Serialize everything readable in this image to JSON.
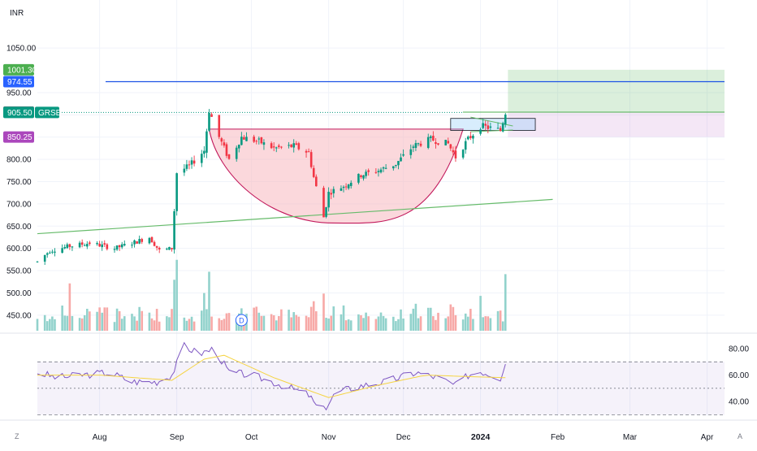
{
  "currency_label": "INR",
  "chart_data": {
    "type": "candlestick",
    "symbol": "GRSE",
    "x_axis": {
      "labels": [
        "Aug",
        "Sep",
        "Oct",
        "Nov",
        "Dec",
        "2024",
        "Feb",
        "Mar",
        "Apr"
      ],
      "dates": [
        "2023-08-01",
        "2023-09-01",
        "2023-10-01",
        "2023-11-01",
        "2023-12-01",
        "2024-01-01",
        "2024-02-01",
        "2024-03-01",
        "2024-04-01"
      ],
      "range": [
        "2023-07-07",
        "2024-04-08"
      ]
    },
    "price_axis": {
      "range": [
        415,
        1085
      ],
      "ticks": [
        450,
        500,
        550,
        600,
        650,
        700,
        750,
        800,
        850,
        900,
        950,
        1050
      ],
      "tick_labels": [
        "450.00",
        "500.00",
        "550.00",
        "600.00",
        "650.00",
        "700.00",
        "750.00",
        "800.00",
        "850.00",
        "900.00",
        "950.00",
        "1050.00"
      ]
    },
    "price_badges": [
      {
        "label": "1001.30",
        "value": 1001.3,
        "color": "#4caf50"
      },
      {
        "label": "974.55",
        "value": 974.55,
        "color": "#2962ff"
      },
      {
        "label": "906.30",
        "value": 906.3,
        "color": "#787b86"
      },
      {
        "label": "905.50",
        "value": 905.5,
        "color": "#089981"
      },
      {
        "label": "850.25",
        "value": 850.25,
        "color": "#ab47bc"
      }
    ],
    "colors": {
      "up": "#089981",
      "down": "#f23645",
      "volume_up": "#92d2cc",
      "volume_down": "#f7a9a7",
      "rsi": "#7e57c2",
      "rsi_ma": "#f5d442"
    },
    "candles_anchor": [
      [
        "2023-07-07",
        570
      ],
      [
        "2023-07-12",
        595
      ],
      [
        "2023-07-20",
        605
      ],
      [
        "2023-07-28",
        612
      ],
      [
        "2023-08-07",
        600
      ],
      [
        "2023-08-14",
        612
      ],
      [
        "2023-08-21",
        625
      ],
      [
        "2023-08-25",
        595
      ],
      [
        "2023-08-30",
        600
      ],
      [
        "2023-09-01",
        770
      ],
      [
        "2023-09-06",
        785
      ],
      [
        "2023-09-12",
        820
      ],
      [
        "2023-09-14",
        910
      ],
      [
        "2023-09-18",
        850
      ],
      [
        "2023-09-22",
        800
      ],
      [
        "2023-09-27",
        850
      ],
      [
        "2023-10-04",
        840
      ],
      [
        "2023-10-10",
        825
      ],
      [
        "2023-10-18",
        830
      ],
      [
        "2023-10-24",
        815
      ],
      [
        "2023-10-26",
        760
      ],
      [
        "2023-10-30",
        670
      ],
      [
        "2023-11-01",
        725
      ],
      [
        "2023-11-07",
        740
      ],
      [
        "2023-11-14",
        765
      ],
      [
        "2023-11-21",
        775
      ],
      [
        "2023-11-28",
        790
      ],
      [
        "2023-12-05",
        830
      ],
      [
        "2023-12-12",
        845
      ],
      [
        "2023-12-19",
        835
      ],
      [
        "2023-12-22",
        805
      ],
      [
        "2023-12-27",
        845
      ],
      [
        "2024-01-01",
        875
      ],
      [
        "2024-01-05",
        870
      ],
      [
        "2024-01-09",
        865
      ],
      [
        "2024-01-11",
        906
      ]
    ],
    "annotations": {
      "resistance_line": 974.55,
      "cup_rim_level": 868,
      "cup_bottom": {
        "date": "2023-11-03",
        "value": 657
      },
      "trendline": {
        "start": [
          "2023-07-07",
          633
        ],
        "end": [
          "2024-01-30",
          710
        ]
      },
      "target_zone": [
        906,
        1001.3
      ],
      "stop_zone": [
        850.25,
        906
      ],
      "consolidation_box": [
        865,
        892
      ],
      "dividend_marker": "D"
    },
    "rsi": {
      "axis_range": [
        29,
        88
      ],
      "ticks": [
        40,
        60,
        80
      ],
      "tick_labels": [
        "40.00",
        "60.00",
        "80.00"
      ],
      "levels": [
        30,
        50,
        70
      ],
      "anchor": [
        [
          "2023-07-07",
          62
        ],
        [
          "2023-07-15",
          58
        ],
        [
          "2023-07-25",
          60
        ],
        [
          "2023-08-05",
          62
        ],
        [
          "2023-08-14",
          55
        ],
        [
          "2023-08-24",
          55
        ],
        [
          "2023-08-30",
          60
        ],
        [
          "2023-09-04",
          82
        ],
        [
          "2023-09-10",
          76
        ],
        [
          "2023-09-16",
          80
        ],
        [
          "2023-09-22",
          62
        ],
        [
          "2023-10-01",
          60
        ],
        [
          "2023-10-14",
          52
        ],
        [
          "2023-10-24",
          45
        ],
        [
          "2023-10-29",
          31
        ],
        [
          "2023-11-04",
          47
        ],
        [
          "2023-11-14",
          52
        ],
        [
          "2023-11-24",
          55
        ],
        [
          "2023-12-06",
          62
        ],
        [
          "2023-12-15",
          58
        ],
        [
          "2023-12-22",
          52
        ],
        [
          "2023-12-27",
          60
        ],
        [
          "2024-01-01",
          63
        ],
        [
          "2024-01-09",
          58
        ],
        [
          "2024-01-11",
          70
        ]
      ],
      "ma_anchor": [
        [
          "2023-07-07",
          60
        ],
        [
          "2023-08-01",
          60
        ],
        [
          "2023-08-30",
          56
        ],
        [
          "2023-09-12",
          72
        ],
        [
          "2023-09-20",
          75
        ],
        [
          "2023-10-10",
          58
        ],
        [
          "2023-11-01",
          43
        ],
        [
          "2023-11-20",
          52
        ],
        [
          "2023-12-10",
          60
        ],
        [
          "2023-12-25",
          59
        ],
        [
          "2024-01-11",
          58
        ]
      ]
    }
  },
  "toolbar": {
    "left_icon": "Z",
    "right_icon": "A"
  }
}
